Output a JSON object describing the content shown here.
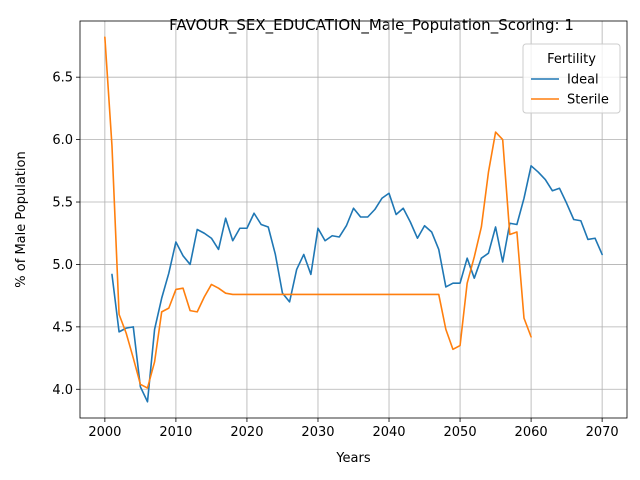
{
  "chart_data": {
    "type": "line",
    "title": "FAVOUR_SEX_EDUCATION_Male_Population_Scoring: 1",
    "xlabel": "Years",
    "ylabel": "% of Male Population",
    "xlim": [
      1996.5,
      2073.5
    ],
    "ylim": [
      3.77,
      6.95
    ],
    "xticks": [
      2000,
      2010,
      2020,
      2030,
      2040,
      2050,
      2060,
      2070
    ],
    "yticks": [
      4.0,
      4.5,
      5.0,
      5.5,
      6.0,
      6.5
    ],
    "ytick_labels": [
      "4.0",
      "4.5",
      "5.0",
      "5.5",
      "6.0",
      "6.5"
    ],
    "grid": true,
    "legend": {
      "title": "Fertility",
      "position": "top-right"
    },
    "series": [
      {
        "name": "Ideal",
        "color": "#1f77b4",
        "x": [
          2001,
          2002,
          2003,
          2004,
          2005,
          2006,
          2007,
          2008,
          2009,
          2010,
          2011,
          2012,
          2013,
          2014,
          2015,
          2016,
          2017,
          2018,
          2019,
          2020,
          2021,
          2022,
          2023,
          2024,
          2025,
          2026,
          2027,
          2028,
          2029,
          2030,
          2031,
          2032,
          2033,
          2034,
          2035,
          2036,
          2037,
          2038,
          2039,
          2040,
          2041,
          2042,
          2043,
          2044,
          2045,
          2046,
          2047,
          2048,
          2049,
          2050,
          2051,
          2052,
          2053,
          2054,
          2055,
          2056,
          2057,
          2058,
          2059,
          2060,
          2061,
          2062,
          2063,
          2064,
          2065,
          2066,
          2067,
          2068,
          2069,
          2070
        ],
        "values": [
          4.92,
          4.46,
          4.49,
          4.5,
          4.02,
          3.9,
          4.48,
          4.73,
          4.93,
          5.18,
          5.07,
          5.0,
          5.28,
          5.25,
          5.21,
          5.12,
          5.37,
          5.19,
          5.29,
          5.29,
          5.41,
          5.32,
          5.3,
          5.08,
          4.77,
          4.7,
          4.96,
          5.08,
          4.92,
          5.29,
          5.19,
          5.23,
          5.22,
          5.31,
          5.45,
          5.38,
          5.38,
          5.44,
          5.53,
          5.57,
          5.4,
          5.45,
          5.34,
          5.21,
          5.31,
          5.26,
          5.12,
          4.82,
          4.85,
          4.85,
          5.05,
          4.89,
          5.05,
          5.09,
          5.3,
          5.02,
          5.33,
          5.32,
          5.53,
          5.79,
          5.74,
          5.68,
          5.59,
          5.61,
          5.49,
          5.36,
          5.35,
          5.2,
          5.21,
          5.08
        ]
      },
      {
        "name": "Sterile",
        "color": "#ff7f0e",
        "x": [
          2000,
          2001,
          2002,
          2003,
          2004,
          2005,
          2006,
          2007,
          2008,
          2009,
          2010,
          2011,
          2012,
          2013,
          2014,
          2015,
          2016,
          2017,
          2018,
          2019,
          2020,
          2021,
          2022,
          2023,
          2024,
          2025,
          2026,
          2027,
          2028,
          2029,
          2030,
          2031,
          2032,
          2033,
          2034,
          2035,
          2036,
          2037,
          2038,
          2039,
          2040,
          2041,
          2042,
          2043,
          2044,
          2045,
          2046,
          2047,
          2048,
          2049,
          2050,
          2051,
          2052,
          2053,
          2054,
          2055,
          2056,
          2057,
          2058,
          2059,
          2060
        ],
        "values": [
          6.82,
          5.95,
          4.6,
          4.45,
          4.25,
          4.04,
          4.01,
          4.22,
          4.62,
          4.65,
          4.8,
          4.81,
          4.63,
          4.62,
          4.74,
          4.84,
          4.81,
          4.77,
          4.76,
          4.76,
          4.76,
          4.76,
          4.76,
          4.76,
          4.76,
          4.76,
          4.76,
          4.76,
          4.76,
          4.76,
          4.76,
          4.76,
          4.76,
          4.76,
          4.76,
          4.76,
          4.76,
          4.76,
          4.76,
          4.76,
          4.76,
          4.76,
          4.76,
          4.76,
          4.76,
          4.76,
          4.76,
          4.76,
          4.48,
          4.32,
          4.35,
          4.85,
          5.06,
          5.3,
          5.74,
          6.06,
          6.0,
          5.24,
          5.26,
          4.57,
          4.42
        ]
      }
    ]
  }
}
